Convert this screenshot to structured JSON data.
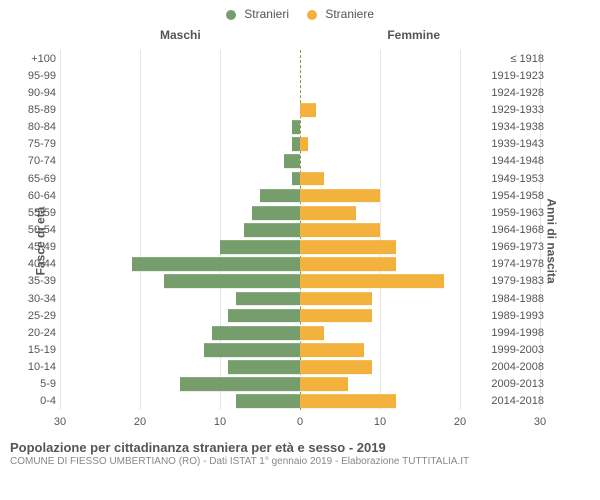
{
  "legend": {
    "male": {
      "label": "Stranieri",
      "color": "#769d6c"
    },
    "female": {
      "label": "Straniere",
      "color": "#f3b13e"
    }
  },
  "headers": {
    "left": "Maschi",
    "right": "Femmine"
  },
  "axis_titles": {
    "left": "Fasce di età",
    "right": "Anni di nascita"
  },
  "grid_color": "#e6e6e6",
  "center_line_color": "#9a893f",
  "background": "#ffffff",
  "tick_color": "#555555",
  "label_fontsize": 11,
  "max": 30,
  "ticks": [
    30,
    20,
    10,
    0,
    10,
    20,
    30
  ],
  "rows": [
    {
      "age": "100+",
      "birth": "≤ 1918",
      "m": 0,
      "f": 0
    },
    {
      "age": "95-99",
      "birth": "1919-1923",
      "m": 0,
      "f": 0
    },
    {
      "age": "90-94",
      "birth": "1924-1928",
      "m": 0,
      "f": 0
    },
    {
      "age": "85-89",
      "birth": "1929-1933",
      "m": 0,
      "f": 2
    },
    {
      "age": "80-84",
      "birth": "1934-1938",
      "m": 1,
      "f": 0
    },
    {
      "age": "75-79",
      "birth": "1939-1943",
      "m": 1,
      "f": 1
    },
    {
      "age": "70-74",
      "birth": "1944-1948",
      "m": 2,
      "f": 0
    },
    {
      "age": "65-69",
      "birth": "1949-1953",
      "m": 1,
      "f": 3
    },
    {
      "age": "60-64",
      "birth": "1954-1958",
      "m": 5,
      "f": 10
    },
    {
      "age": "55-59",
      "birth": "1959-1963",
      "m": 6,
      "f": 7
    },
    {
      "age": "50-54",
      "birth": "1964-1968",
      "m": 7,
      "f": 10
    },
    {
      "age": "45-49",
      "birth": "1969-1973",
      "m": 10,
      "f": 12
    },
    {
      "age": "40-44",
      "birth": "1974-1978",
      "m": 21,
      "f": 12
    },
    {
      "age": "35-39",
      "birth": "1979-1983",
      "m": 17,
      "f": 18
    },
    {
      "age": "30-34",
      "birth": "1984-1988",
      "m": 8,
      "f": 9
    },
    {
      "age": "25-29",
      "birth": "1989-1993",
      "m": 9,
      "f": 9
    },
    {
      "age": "20-24",
      "birth": "1994-1998",
      "m": 11,
      "f": 3
    },
    {
      "age": "15-19",
      "birth": "1999-2003",
      "m": 12,
      "f": 8
    },
    {
      "age": "10-14",
      "birth": "2004-2008",
      "m": 9,
      "f": 9
    },
    {
      "age": "5-9",
      "birth": "2009-2013",
      "m": 15,
      "f": 6
    },
    {
      "age": "0-4",
      "birth": "2014-2018",
      "m": 8,
      "f": 12
    }
  ],
  "caption": {
    "line1": "Popolazione per cittadinanza straniera per età e sesso - 2019",
    "line2": "COMUNE DI FIESSO UMBERTIANO (RO) - Dati ISTAT 1° gennaio 2019 - Elaborazione TUTTITALIA.IT"
  }
}
